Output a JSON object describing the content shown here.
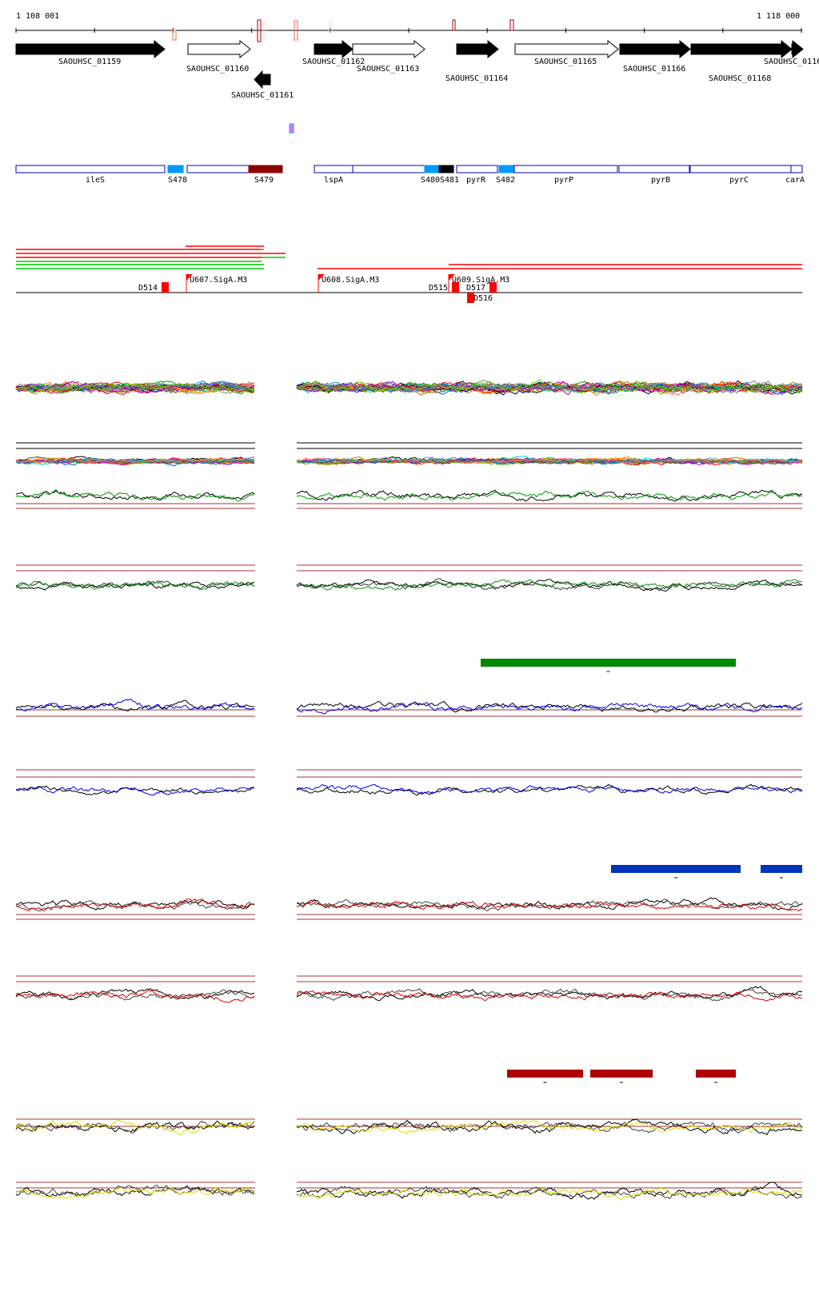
{
  "coordinates": {
    "start": "1 108 001",
    "end": "1 118 000"
  },
  "genes": [
    {
      "label": "SAOUHSC_01159",
      "strand": "+",
      "filled": true
    },
    {
      "label": "SAOUHSC_01160",
      "strand": "+",
      "filled": false
    },
    {
      "label": "SAOUHSC_01161",
      "strand": "-",
      "filled": true
    },
    {
      "label": "SAOUHSC_01162",
      "strand": "+",
      "filled": true
    },
    {
      "label": "SAOUHSC_01163",
      "strand": "+",
      "filled": false
    },
    {
      "label": "SAOUHSC_01164",
      "strand": "+",
      "filled": true
    },
    {
      "label": "SAOUHSC_01165",
      "strand": "+",
      "filled": false
    },
    {
      "label": "SAOUHSC_01166",
      "strand": "+",
      "filled": true
    },
    {
      "label": "SAOUHSC_01168",
      "strand": "+",
      "filled": true
    },
    {
      "label": "SAOUHSC_0116",
      "strand": "+",
      "filled": true
    }
  ],
  "features": [
    {
      "label": "ileS",
      "type": "box"
    },
    {
      "label": "S478",
      "type": "srna"
    },
    {
      "label": "",
      "type": "box"
    },
    {
      "label": "S479",
      "type": "dark"
    },
    {
      "label": "lspA",
      "type": "box"
    },
    {
      "label": "",
      "type": "box"
    },
    {
      "label": "S480",
      "type": "srna"
    },
    {
      "label": "S481",
      "type": "black"
    },
    {
      "label": "pyrR",
      "type": "box"
    },
    {
      "label": "S482",
      "type": "srna"
    },
    {
      "label": "pyrP",
      "type": "box"
    },
    {
      "label": "pyrB",
      "type": "box"
    },
    {
      "label": "pyrC",
      "type": "box"
    },
    {
      "label": "carA",
      "type": "box"
    }
  ],
  "promoters": [
    "U607.SigA.M3",
    "U608.SigA.M3",
    "U609.SigA.M3"
  ],
  "terminators": [
    "D514",
    "D515",
    "D516",
    "D517"
  ],
  "colors": {
    "feature_outline": "#0000cc",
    "srna": "#0099ff",
    "dark_feature": "#8b0000",
    "marker": "#ff0000",
    "green_bar": "#008800",
    "blue_bar": "#0033bb",
    "red_bar": "#b00000",
    "green_trace": "#009900",
    "blue_trace": "#0000ee",
    "red_trace": "#dd0000",
    "yellow_trace": "#dddd00"
  }
}
